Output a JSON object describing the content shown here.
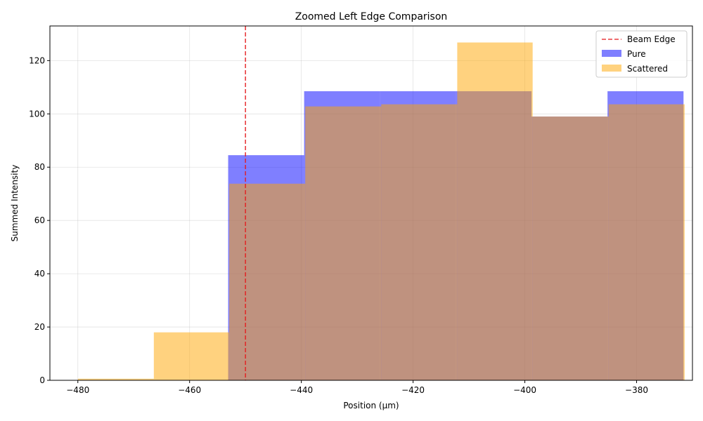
{
  "chart_data": {
    "type": "histogram",
    "title": "Zoomed Left Edge Comparison",
    "xlabel": "Position (µm)",
    "ylabel": "Summed Intensity",
    "xlim": [
      -485,
      -370
    ],
    "ylim": [
      0,
      133
    ],
    "xticks": [
      -480,
      -460,
      -440,
      -420,
      -400,
      -380
    ],
    "yticks": [
      0,
      20,
      40,
      60,
      80,
      100,
      120
    ],
    "grid": true,
    "legend_position": "top-right",
    "beam_edge": {
      "name": "Beam Edge",
      "x": -450,
      "color": "#e41a1c"
    },
    "series": [
      {
        "name": "Pure",
        "color": "#0000ff",
        "opacity": 0.5,
        "bins": [
          {
            "x0": -453.1,
            "x1": -439.5,
            "value": 84.5
          },
          {
            "x0": -439.5,
            "x1": -425.9,
            "value": 108.5
          },
          {
            "x0": -425.9,
            "x1": -412.3,
            "value": 108.5
          },
          {
            "x0": -412.3,
            "x1": -398.8,
            "value": 108.5
          },
          {
            "x0": -398.8,
            "x1": -385.2,
            "value": 99.0
          },
          {
            "x0": -385.2,
            "x1": -371.6,
            "value": 108.5
          }
        ]
      },
      {
        "name": "Scattered",
        "color": "#ffa500",
        "opacity": 0.5,
        "bins": [
          {
            "x0": -480.0,
            "x1": -466.4,
            "value": 0.6
          },
          {
            "x0": -466.4,
            "x1": -452.9,
            "value": 18.0
          },
          {
            "x0": -452.9,
            "x1": -439.3,
            "value": 73.8
          },
          {
            "x0": -439.3,
            "x1": -425.7,
            "value": 102.8
          },
          {
            "x0": -425.7,
            "x1": -412.1,
            "value": 103.6
          },
          {
            "x0": -412.1,
            "x1": -398.6,
            "value": 126.8
          },
          {
            "x0": -398.6,
            "x1": -385.0,
            "value": 99.0
          },
          {
            "x0": -385.0,
            "x1": -371.4,
            "value": 103.6
          }
        ]
      }
    ]
  }
}
